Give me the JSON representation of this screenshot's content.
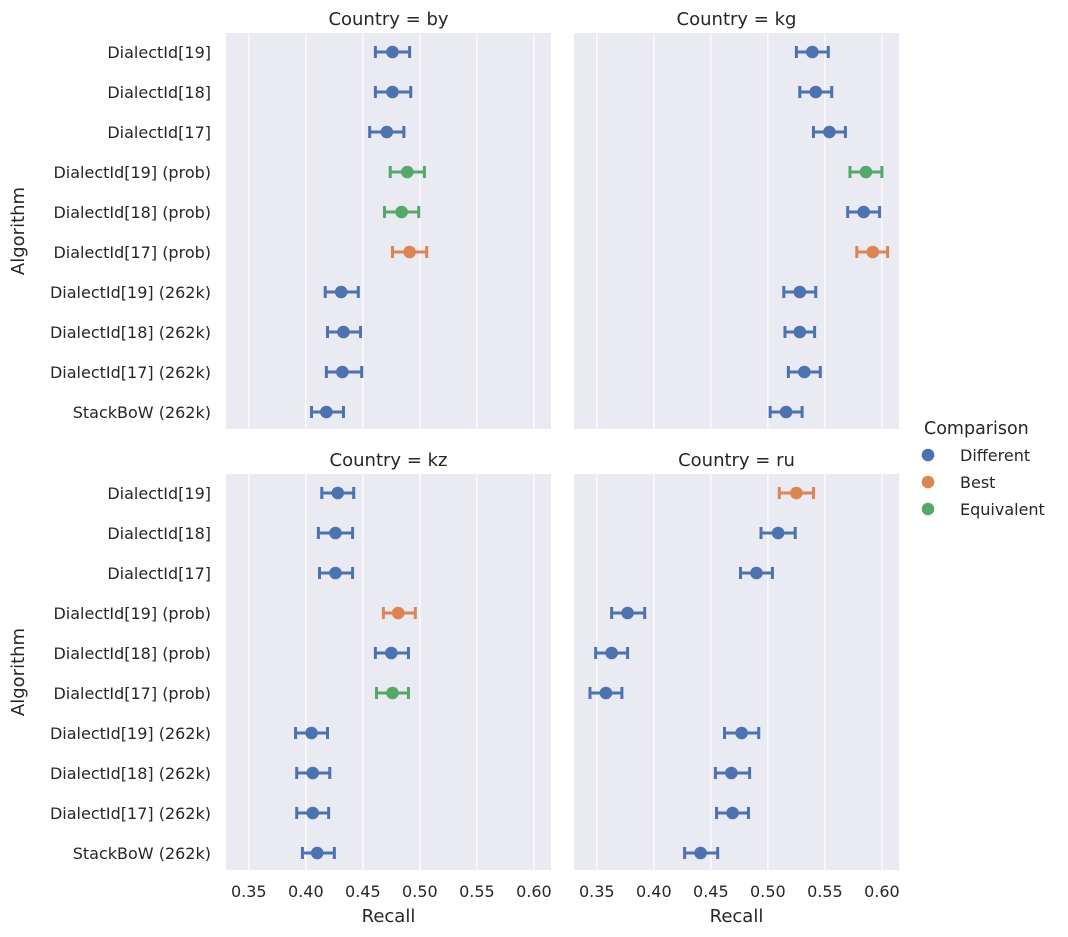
{
  "chart_data": {
    "type": "point-errorbar",
    "xlabel": "Recall",
    "ylabel": "Algorithm",
    "xlim": [
      0.33,
      0.615
    ],
    "xticks": [
      "0.35",
      "0.40",
      "0.45",
      "0.50",
      "0.55",
      "0.60"
    ],
    "grid": true,
    "algorithms": [
      "DialectId[19]",
      "DialectId[18]",
      "DialectId[17]",
      "DialectId[19] (prob)",
      "DialectId[18] (prob)",
      "DialectId[17] (prob)",
      "DialectId[19] (262k)",
      "DialectId[18] (262k)",
      "DialectId[17] (262k)",
      "StackBoW (262k)"
    ],
    "legend": {
      "title": "Comparison",
      "placement": "right",
      "entries": [
        {
          "label": "Different",
          "color": "#4c72b0"
        },
        {
          "label": "Best",
          "color": "#dd8452"
        },
        {
          "label": "Equivalent",
          "color": "#55a868"
        }
      ]
    },
    "panels": [
      {
        "title": "Country = by",
        "points": [
          {
            "value": 0.476,
            "low": 0.461,
            "high": 0.491,
            "comparison": "Different"
          },
          {
            "value": 0.476,
            "low": 0.461,
            "high": 0.492,
            "comparison": "Different"
          },
          {
            "value": 0.471,
            "low": 0.456,
            "high": 0.486,
            "comparison": "Different"
          },
          {
            "value": 0.489,
            "low": 0.474,
            "high": 0.504,
            "comparison": "Equivalent"
          },
          {
            "value": 0.484,
            "low": 0.469,
            "high": 0.499,
            "comparison": "Equivalent"
          },
          {
            "value": 0.491,
            "low": 0.476,
            "high": 0.506,
            "comparison": "Best"
          },
          {
            "value": 0.431,
            "low": 0.417,
            "high": 0.446,
            "comparison": "Different"
          },
          {
            "value": 0.433,
            "low": 0.419,
            "high": 0.448,
            "comparison": "Different"
          },
          {
            "value": 0.432,
            "low": 0.418,
            "high": 0.449,
            "comparison": "Different"
          },
          {
            "value": 0.418,
            "low": 0.405,
            "high": 0.433,
            "comparison": "Different"
          }
        ]
      },
      {
        "title": "Country = kg",
        "points": [
          {
            "value": 0.539,
            "low": 0.525,
            "high": 0.553,
            "comparison": "Different"
          },
          {
            "value": 0.542,
            "low": 0.528,
            "high": 0.556,
            "comparison": "Different"
          },
          {
            "value": 0.554,
            "low": 0.54,
            "high": 0.568,
            "comparison": "Different"
          },
          {
            "value": 0.586,
            "low": 0.572,
            "high": 0.6,
            "comparison": "Equivalent"
          },
          {
            "value": 0.584,
            "low": 0.57,
            "high": 0.598,
            "comparison": "Different"
          },
          {
            "value": 0.592,
            "low": 0.578,
            "high": 0.605,
            "comparison": "Best"
          },
          {
            "value": 0.528,
            "low": 0.514,
            "high": 0.542,
            "comparison": "Different"
          },
          {
            "value": 0.528,
            "low": 0.515,
            "high": 0.541,
            "comparison": "Different"
          },
          {
            "value": 0.532,
            "low": 0.518,
            "high": 0.546,
            "comparison": "Different"
          },
          {
            "value": 0.516,
            "low": 0.502,
            "high": 0.53,
            "comparison": "Different"
          }
        ]
      },
      {
        "title": "Country = kz",
        "points": [
          {
            "value": 0.428,
            "low": 0.414,
            "high": 0.442,
            "comparison": "Different"
          },
          {
            "value": 0.426,
            "low": 0.411,
            "high": 0.441,
            "comparison": "Different"
          },
          {
            "value": 0.426,
            "low": 0.412,
            "high": 0.441,
            "comparison": "Different"
          },
          {
            "value": 0.481,
            "low": 0.468,
            "high": 0.496,
            "comparison": "Best"
          },
          {
            "value": 0.475,
            "low": 0.461,
            "high": 0.49,
            "comparison": "Different"
          },
          {
            "value": 0.476,
            "low": 0.462,
            "high": 0.49,
            "comparison": "Equivalent"
          },
          {
            "value": 0.405,
            "low": 0.391,
            "high": 0.419,
            "comparison": "Different"
          },
          {
            "value": 0.406,
            "low": 0.392,
            "high": 0.421,
            "comparison": "Different"
          },
          {
            "value": 0.406,
            "low": 0.392,
            "high": 0.42,
            "comparison": "Different"
          },
          {
            "value": 0.41,
            "low": 0.397,
            "high": 0.425,
            "comparison": "Different"
          }
        ]
      },
      {
        "title": "Country = ru",
        "points": [
          {
            "value": 0.525,
            "low": 0.51,
            "high": 0.54,
            "comparison": "Best"
          },
          {
            "value": 0.509,
            "low": 0.494,
            "high": 0.524,
            "comparison": "Different"
          },
          {
            "value": 0.49,
            "low": 0.476,
            "high": 0.504,
            "comparison": "Different"
          },
          {
            "value": 0.377,
            "low": 0.363,
            "high": 0.392,
            "comparison": "Different"
          },
          {
            "value": 0.363,
            "low": 0.349,
            "high": 0.377,
            "comparison": "Different"
          },
          {
            "value": 0.358,
            "low": 0.344,
            "high": 0.372,
            "comparison": "Different"
          },
          {
            "value": 0.477,
            "low": 0.462,
            "high": 0.492,
            "comparison": "Different"
          },
          {
            "value": 0.468,
            "low": 0.454,
            "high": 0.484,
            "comparison": "Different"
          },
          {
            "value": 0.469,
            "low": 0.455,
            "high": 0.483,
            "comparison": "Different"
          },
          {
            "value": 0.441,
            "low": 0.427,
            "high": 0.456,
            "comparison": "Different"
          }
        ]
      }
    ]
  }
}
